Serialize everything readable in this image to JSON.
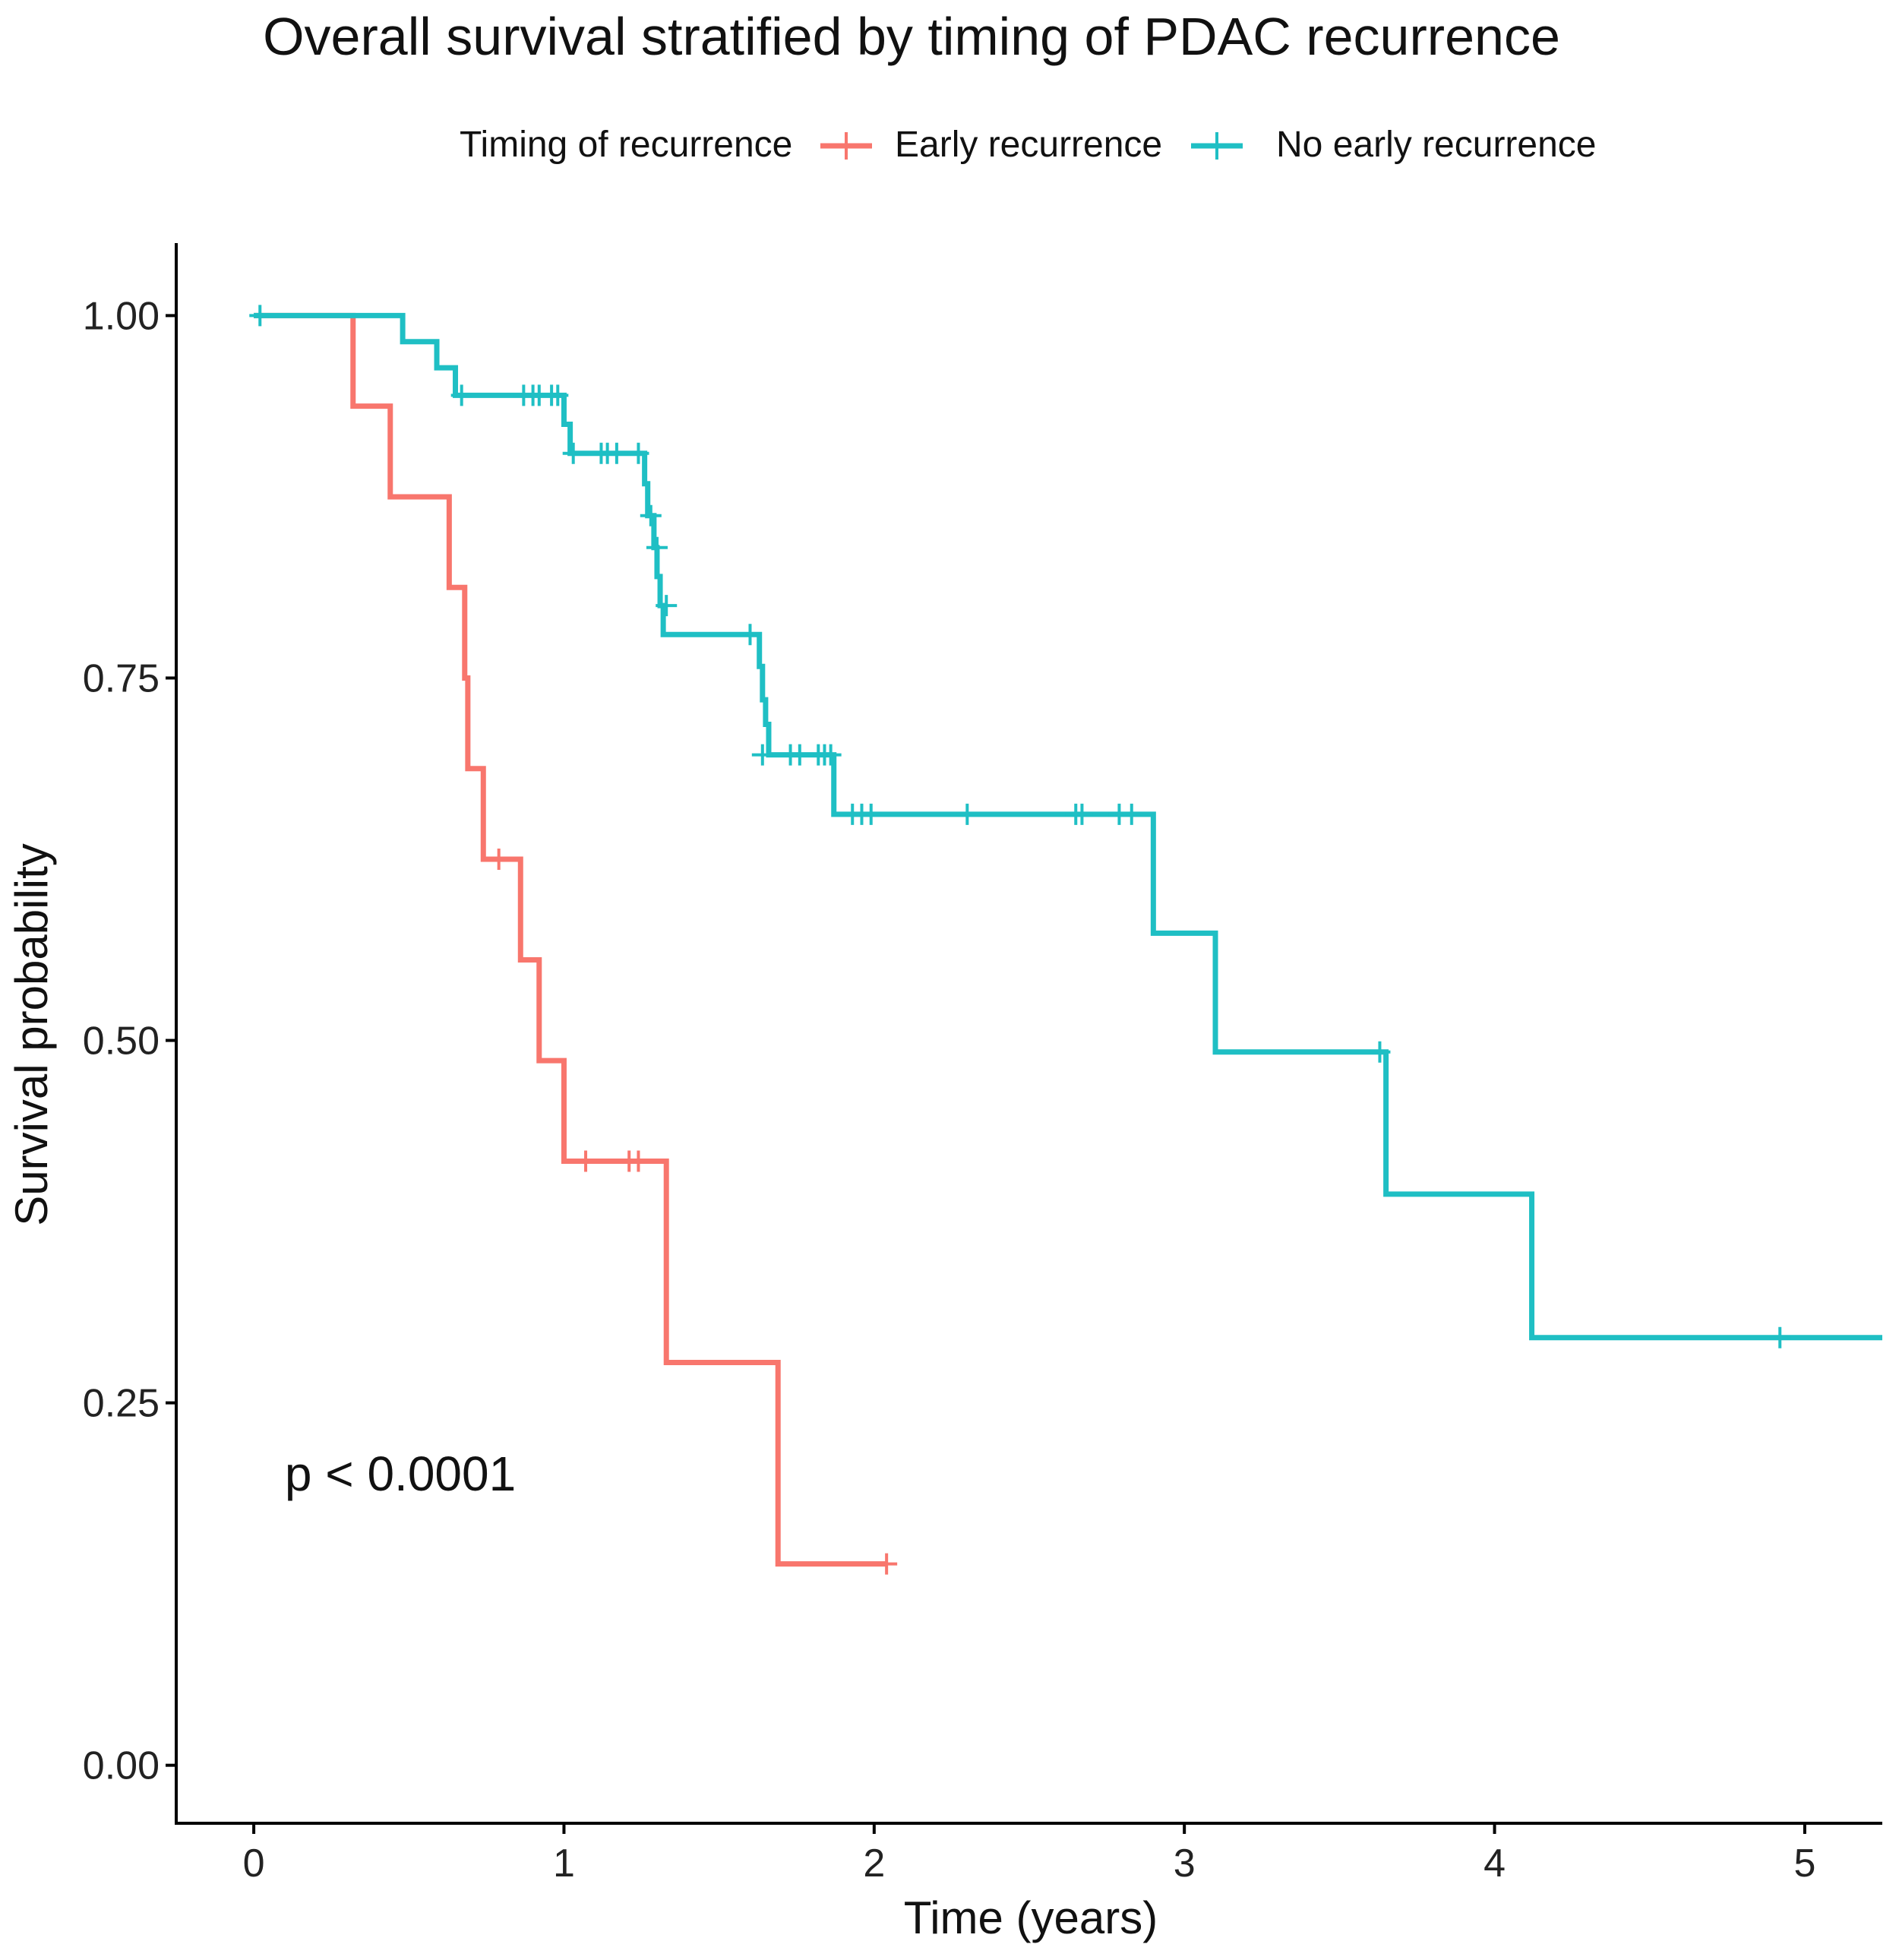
{
  "chart_data": {
    "type": "line",
    "subtype": "kaplan-meier",
    "title": "Overall survival stratified by timing of PDAC recurrence",
    "xlabel": "Time (years)",
    "ylabel": "Survival probability",
    "xlim": [
      -0.25,
      5.25
    ],
    "ylim": [
      -0.04,
      1.05
    ],
    "xticks": [
      0,
      1,
      2,
      3,
      4,
      5
    ],
    "xtick_labels": [
      "0",
      "1",
      "2",
      "3",
      "4",
      "5"
    ],
    "yticks": [
      0,
      0.25,
      0.5,
      0.75,
      1.0
    ],
    "ytick_labels": [
      "0.00",
      "0.25",
      "0.50",
      "0.75",
      "1.00"
    ],
    "grid": false,
    "legend": {
      "title": "Timing of recurrence",
      "placement": "top"
    },
    "annotation": "p < 0.0001",
    "annotation_position": [
      0.1,
      0.2
    ],
    "series": [
      {
        "name": "Early recurrence",
        "color": "#F8766D",
        "steps": [
          [
            0,
            1.0
          ],
          [
            0.32,
            0.9375
          ],
          [
            0.44,
            0.875
          ],
          [
            0.63,
            0.8125
          ],
          [
            0.68,
            0.75
          ],
          [
            0.69,
            0.6875
          ],
          [
            0.74,
            0.625
          ],
          [
            0.86,
            0.5556
          ],
          [
            0.92,
            0.4861
          ],
          [
            1.0,
            0.4167
          ],
          [
            1.33,
            0.2778
          ],
          [
            1.69,
            0.1389
          ]
        ],
        "end": 2.04,
        "censor": [
          [
            0.79,
            0.625
          ],
          [
            1.07,
            0.4167
          ],
          [
            1.21,
            0.4167
          ],
          [
            1.24,
            0.4167
          ],
          [
            2.04,
            0.1389
          ]
        ]
      },
      {
        "name": "No early recurrence",
        "color": "#1FBFC4",
        "steps": [
          [
            0,
            1.0
          ],
          [
            0.48,
            0.982
          ],
          [
            0.59,
            0.964
          ],
          [
            0.65,
            0.945
          ],
          [
            1.0,
            0.925
          ],
          [
            1.02,
            0.905
          ],
          [
            1.26,
            0.884
          ],
          [
            1.27,
            0.862
          ],
          [
            1.29,
            0.84
          ],
          [
            1.3,
            0.82
          ],
          [
            1.31,
            0.8
          ],
          [
            1.32,
            0.78
          ],
          [
            1.63,
            0.758
          ],
          [
            1.64,
            0.735
          ],
          [
            1.65,
            0.718
          ],
          [
            1.66,
            0.697
          ],
          [
            1.87,
            0.656
          ],
          [
            2.9,
            0.574
          ],
          [
            3.1,
            0.492
          ],
          [
            3.65,
            0.394
          ],
          [
            4.12,
            0.295
          ]
        ],
        "end": 5.25,
        "censor": [
          [
            0.02,
            1.0
          ],
          [
            0.67,
            0.945
          ],
          [
            0.87,
            0.945
          ],
          [
            0.9,
            0.945
          ],
          [
            0.92,
            0.945
          ],
          [
            0.96,
            0.945
          ],
          [
            0.98,
            0.945
          ],
          [
            1.03,
            0.905
          ],
          [
            1.12,
            0.905
          ],
          [
            1.14,
            0.905
          ],
          [
            1.17,
            0.905
          ],
          [
            1.24,
            0.905
          ],
          [
            1.28,
            0.862
          ],
          [
            1.3,
            0.84
          ],
          [
            1.33,
            0.8
          ],
          [
            1.6,
            0.78
          ],
          [
            1.64,
            0.697
          ],
          [
            1.73,
            0.697
          ],
          [
            1.76,
            0.697
          ],
          [
            1.82,
            0.697
          ],
          [
            1.84,
            0.697
          ],
          [
            1.86,
            0.697
          ],
          [
            1.93,
            0.656
          ],
          [
            1.96,
            0.656
          ],
          [
            1.99,
            0.656
          ],
          [
            2.3,
            0.656
          ],
          [
            2.65,
            0.656
          ],
          [
            2.67,
            0.656
          ],
          [
            2.79,
            0.656
          ],
          [
            2.83,
            0.656
          ],
          [
            3.63,
            0.492
          ],
          [
            4.92,
            0.295
          ]
        ]
      }
    ]
  }
}
